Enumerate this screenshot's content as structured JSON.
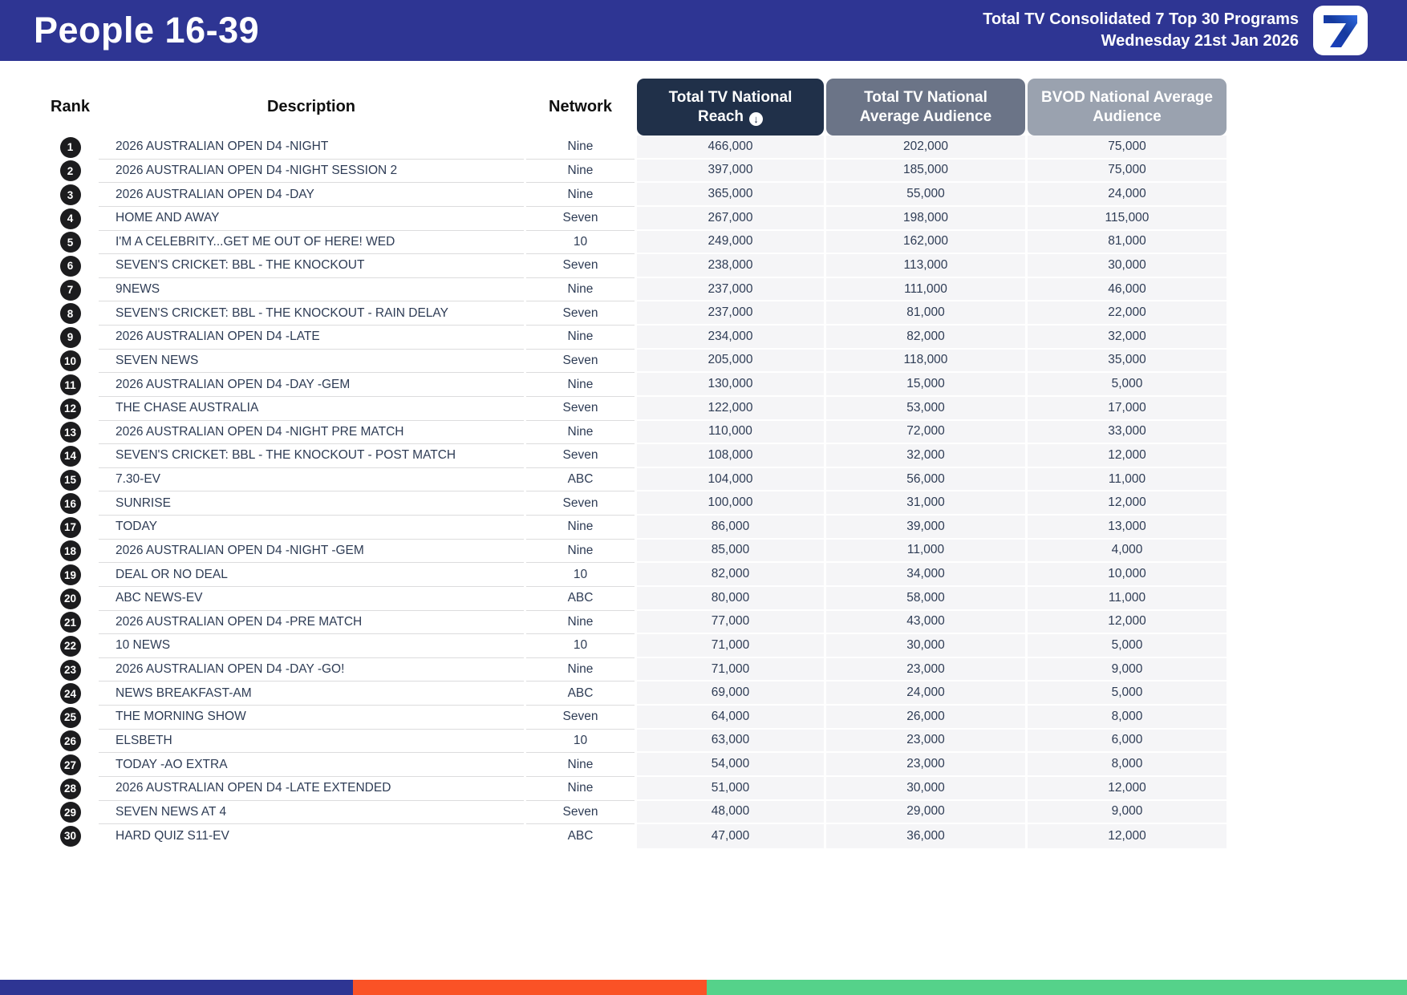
{
  "header": {
    "title": "People 16-39",
    "report_line1": "Total TV Consolidated 7 Top 30 Programs",
    "report_line2": "Wednesday 21st Jan 2026",
    "logo_text": "7"
  },
  "icons": {
    "sort_arrow": "↓"
  },
  "colors": {
    "brand_blue": "#2e3593",
    "reach_header": "#203049",
    "avg_header": "#6b7487",
    "bvod_header": "#9aa2af",
    "numeric_cell_bg": "#f5f5f7",
    "text_slate": "#2e3c55",
    "rank_badge": "#1c1c1e",
    "stripe_orange": "#fa5226",
    "stripe_green": "#55d28a"
  },
  "table": {
    "columns": {
      "rank": "Rank",
      "description": "Description",
      "network": "Network",
      "reach": "Total TV National Reach",
      "avg": "Total TV National Average Audience",
      "bvod": "BVOD National Average Audience"
    },
    "rows": [
      {
        "rank": "1",
        "description": "2026 AUSTRALIAN OPEN D4 -NIGHT",
        "network": "Nine",
        "reach": "466,000",
        "avg": "202,000",
        "bvod": "75,000"
      },
      {
        "rank": "2",
        "description": "2026 AUSTRALIAN OPEN D4 -NIGHT SESSION 2",
        "network": "Nine",
        "reach": "397,000",
        "avg": "185,000",
        "bvod": "75,000"
      },
      {
        "rank": "3",
        "description": "2026 AUSTRALIAN OPEN D4 -DAY",
        "network": "Nine",
        "reach": "365,000",
        "avg": "55,000",
        "bvod": "24,000"
      },
      {
        "rank": "4",
        "description": "HOME AND AWAY",
        "network": "Seven",
        "reach": "267,000",
        "avg": "198,000",
        "bvod": "115,000"
      },
      {
        "rank": "5",
        "description": "I'M A CELEBRITY...GET ME OUT OF HERE! WED",
        "network": "10",
        "reach": "249,000",
        "avg": "162,000",
        "bvod": "81,000"
      },
      {
        "rank": "6",
        "description": "SEVEN'S CRICKET: BBL - THE KNOCKOUT",
        "network": "Seven",
        "reach": "238,000",
        "avg": "113,000",
        "bvod": "30,000"
      },
      {
        "rank": "7",
        "description": "9NEWS",
        "network": "Nine",
        "reach": "237,000",
        "avg": "111,000",
        "bvod": "46,000"
      },
      {
        "rank": "8",
        "description": "SEVEN'S CRICKET: BBL - THE KNOCKOUT - RAIN DELAY",
        "network": "Seven",
        "reach": "237,000",
        "avg": "81,000",
        "bvod": "22,000"
      },
      {
        "rank": "9",
        "description": "2026 AUSTRALIAN OPEN D4 -LATE",
        "network": "Nine",
        "reach": "234,000",
        "avg": "82,000",
        "bvod": "32,000"
      },
      {
        "rank": "10",
        "description": "SEVEN NEWS",
        "network": "Seven",
        "reach": "205,000",
        "avg": "118,000",
        "bvod": "35,000"
      },
      {
        "rank": "11",
        "description": "2026 AUSTRALIAN OPEN D4 -DAY -GEM",
        "network": "Nine",
        "reach": "130,000",
        "avg": "15,000",
        "bvod": "5,000"
      },
      {
        "rank": "12",
        "description": "THE CHASE AUSTRALIA",
        "network": "Seven",
        "reach": "122,000",
        "avg": "53,000",
        "bvod": "17,000"
      },
      {
        "rank": "13",
        "description": "2026 AUSTRALIAN OPEN D4 -NIGHT PRE MATCH",
        "network": "Nine",
        "reach": "110,000",
        "avg": "72,000",
        "bvod": "33,000"
      },
      {
        "rank": "14",
        "description": "SEVEN'S CRICKET: BBL - THE KNOCKOUT - POST MATCH",
        "network": "Seven",
        "reach": "108,000",
        "avg": "32,000",
        "bvod": "12,000"
      },
      {
        "rank": "15",
        "description": "7.30-EV",
        "network": "ABC",
        "reach": "104,000",
        "avg": "56,000",
        "bvod": "11,000"
      },
      {
        "rank": "16",
        "description": "SUNRISE",
        "network": "Seven",
        "reach": "100,000",
        "avg": "31,000",
        "bvod": "12,000"
      },
      {
        "rank": "17",
        "description": "TODAY",
        "network": "Nine",
        "reach": "86,000",
        "avg": "39,000",
        "bvod": "13,000"
      },
      {
        "rank": "18",
        "description": "2026 AUSTRALIAN OPEN D4 -NIGHT -GEM",
        "network": "Nine",
        "reach": "85,000",
        "avg": "11,000",
        "bvod": "4,000"
      },
      {
        "rank": "19",
        "description": "DEAL OR NO DEAL",
        "network": "10",
        "reach": "82,000",
        "avg": "34,000",
        "bvod": "10,000"
      },
      {
        "rank": "20",
        "description": "ABC NEWS-EV",
        "network": "ABC",
        "reach": "80,000",
        "avg": "58,000",
        "bvod": "11,000"
      },
      {
        "rank": "21",
        "description": "2026 AUSTRALIAN OPEN D4 -PRE MATCH",
        "network": "Nine",
        "reach": "77,000",
        "avg": "43,000",
        "bvod": "12,000"
      },
      {
        "rank": "22",
        "description": "10 NEWS",
        "network": "10",
        "reach": "71,000",
        "avg": "30,000",
        "bvod": "5,000"
      },
      {
        "rank": "23",
        "description": "2026 AUSTRALIAN OPEN D4 -DAY -GO!",
        "network": "Nine",
        "reach": "71,000",
        "avg": "23,000",
        "bvod": "9,000"
      },
      {
        "rank": "24",
        "description": "NEWS BREAKFAST-AM",
        "network": "ABC",
        "reach": "69,000",
        "avg": "24,000",
        "bvod": "5,000"
      },
      {
        "rank": "25",
        "description": "THE MORNING SHOW",
        "network": "Seven",
        "reach": "64,000",
        "avg": "26,000",
        "bvod": "8,000"
      },
      {
        "rank": "26",
        "description": "ELSBETH",
        "network": "10",
        "reach": "63,000",
        "avg": "23,000",
        "bvod": "6,000"
      },
      {
        "rank": "27",
        "description": "TODAY -AO EXTRA",
        "network": "Nine",
        "reach": "54,000",
        "avg": "23,000",
        "bvod": "8,000"
      },
      {
        "rank": "28",
        "description": "2026 AUSTRALIAN OPEN D4 -LATE EXTENDED",
        "network": "Nine",
        "reach": "51,000",
        "avg": "30,000",
        "bvod": "12,000"
      },
      {
        "rank": "29",
        "description": "SEVEN NEWS AT 4",
        "network": "Seven",
        "reach": "48,000",
        "avg": "29,000",
        "bvod": "9,000"
      },
      {
        "rank": "30",
        "description": "HARD QUIZ S11-EV",
        "network": "ABC",
        "reach": "47,000",
        "avg": "36,000",
        "bvod": "12,000"
      }
    ]
  }
}
